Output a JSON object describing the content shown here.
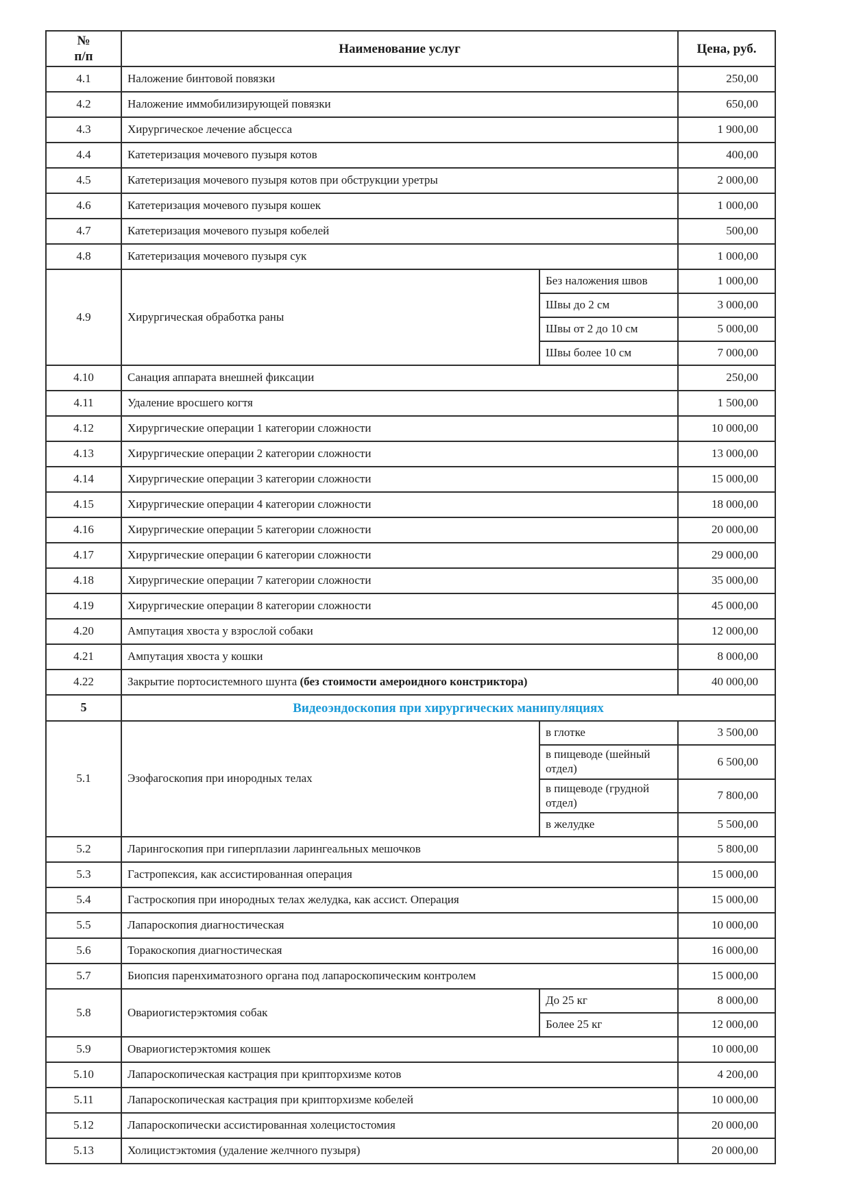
{
  "table": {
    "section_color": "#1b9ad8",
    "headers": {
      "num_line1": "№",
      "num_line2": "п/п",
      "name": "Наименование услуг",
      "price": "Цена, руб."
    },
    "rows": [
      {
        "type": "simple",
        "num": "4.1",
        "name": "Наложение бинтовой повязки",
        "price": "250,00"
      },
      {
        "type": "simple",
        "num": "4.2",
        "name": "Наложение иммобилизирующей повязки",
        "price": "650,00"
      },
      {
        "type": "simple",
        "num": "4.3",
        "name": "Хирургическое лечение абсцесса",
        "price": "1 900,00"
      },
      {
        "type": "simple",
        "num": "4.4",
        "name": "Катетеризация мочевого пузыря котов",
        "price": "400,00"
      },
      {
        "type": "simple",
        "num": "4.5",
        "name": "Катетеризация мочевого пузыря  котов при обструкции уретры",
        "price": "2 000,00"
      },
      {
        "type": "simple",
        "num": "4.6",
        "name": "Катетеризация мочевого пузыря кошек",
        "price": "1 000,00"
      },
      {
        "type": "simple",
        "num": "4.7",
        "name": "Катетеризация мочевого пузыря кобелей",
        "price": "500,00"
      },
      {
        "type": "simple",
        "num": "4.8",
        "name": "Катетеризация мочевого пузыря сук",
        "price": "1 000,00"
      },
      {
        "type": "group",
        "num": "4.9",
        "name": "Хирургическая обработка раны",
        "subs": [
          {
            "label": "Без наложения швов",
            "price": "1 000,00"
          },
          {
            "label": "Швы до 2 см",
            "price": "3 000,00"
          },
          {
            "label": "Швы от 2 до 10 см",
            "price": "5 000,00"
          },
          {
            "label": "Швы более 10 см",
            "price": "7 000,00"
          }
        ]
      },
      {
        "type": "simple",
        "num": "4.10",
        "name": "Санация аппарата внешней фиксации",
        "price": "250,00"
      },
      {
        "type": "simple",
        "num": "4.11",
        "name": "Удаление вросшего когтя",
        "price": "1 500,00"
      },
      {
        "type": "simple",
        "num": "4.12",
        "name": "Хирургические операции 1 категории сложности",
        "price": "10 000,00"
      },
      {
        "type": "simple",
        "num": "4.13",
        "name": "Хирургические операции 2 категории сложности",
        "price": "13 000,00"
      },
      {
        "type": "simple",
        "num": "4.14",
        "name": "Хирургические операции 3 категории сложности",
        "price": "15 000,00"
      },
      {
        "type": "simple",
        "num": "4.15",
        "name": "Хирургические операции 4 категории сложности",
        "price": "18 000,00"
      },
      {
        "type": "simple",
        "num": "4.16",
        "name": "Хирургические операции 5 категории сложности",
        "price": "20 000,00"
      },
      {
        "type": "simple",
        "num": "4.17",
        "name": "Хирургические операции 6 категории сложности",
        "price": "29 000,00"
      },
      {
        "type": "simple",
        "num": "4.18",
        "name": "Хирургические операции 7 категории сложности",
        "price": "35 000,00"
      },
      {
        "type": "simple",
        "num": "4.19",
        "name": "Хирургические операции 8 категории сложности",
        "price": "45 000,00"
      },
      {
        "type": "simple",
        "num": "4.20",
        "name": "Ампутация хвоста у взрослой собаки",
        "price": "12 000,00"
      },
      {
        "type": "simple",
        "num": "4.21",
        "name": "Ампутация хвоста у кошки",
        "price": "8 000,00"
      },
      {
        "type": "simple",
        "num": "4.22",
        "name": "Закрытие портосистемного шунта ",
        "name_bold": "(без стоимости амероидного констриктора)",
        "price": "40 000,00"
      },
      {
        "type": "section",
        "num": "5",
        "title": "Видеоэндоскопия при хирургических манипуляциях"
      },
      {
        "type": "group",
        "num": "5.1",
        "name": "Эзофагоскопия при инородных телах",
        "subs": [
          {
            "label": "в глотке",
            "price": "3 500,00"
          },
          {
            "label": "в пищеводе (шейный отдел)",
            "price": "6 500,00",
            "tall": true
          },
          {
            "label": "в пищеводе (грудной отдел)",
            "price": "7 800,00",
            "tall": true
          },
          {
            "label": "в желудке",
            "price": "5 500,00"
          }
        ]
      },
      {
        "type": "simple",
        "num": "5.2",
        "name": "Ларингоскопия при гиперплазии ларингеальных мешочков",
        "price": "5 800,00"
      },
      {
        "type": "simple",
        "num": "5.3",
        "name": "Гастропексия, как ассистированная операция",
        "price": "15 000,00"
      },
      {
        "type": "simple",
        "num": "5.4",
        "name": "Гастроскопия при инородных телах желудка, как ассист. Операция",
        "price": "15 000,00"
      },
      {
        "type": "simple",
        "num": "5.5",
        "name": "Лапароскопия диагностическая",
        "price": "10 000,00"
      },
      {
        "type": "simple",
        "num": "5.6",
        "name": "Торакоскопия диагностическая",
        "price": "16 000,00"
      },
      {
        "type": "simple",
        "num": "5.7",
        "name": "Биопсия паренхиматозного органа под лапароскопическим контролем",
        "price": "15 000,00"
      },
      {
        "type": "group",
        "num": "5.8",
        "name": "Овариогистерэктомия собак",
        "subs": [
          {
            "label": "До 25 кг",
            "price": "8 000,00"
          },
          {
            "label": "Более 25 кг",
            "price": "12 000,00"
          }
        ]
      },
      {
        "type": "simple",
        "num": "5.9",
        "name": "Овариогистерэктомия кошек",
        "price": "10 000,00"
      },
      {
        "type": "simple",
        "num": "5.10",
        "name": "Лапароскопическая кастрация при крипторхизме котов",
        "price": "4 200,00"
      },
      {
        "type": "simple",
        "num": "5.11",
        "name": "Лапароскопическая кастрация при крипторхизме кобелей",
        "price": "10 000,00"
      },
      {
        "type": "simple",
        "num": "5.12",
        "name": "Лапароскопически ассистированная холецистостомия",
        "price": "20 000,00"
      },
      {
        "type": "simple",
        "num": "5.13",
        "name": "Холицистэктомия (удаление желчного пузыря)",
        "price": "20 000,00"
      }
    ]
  }
}
